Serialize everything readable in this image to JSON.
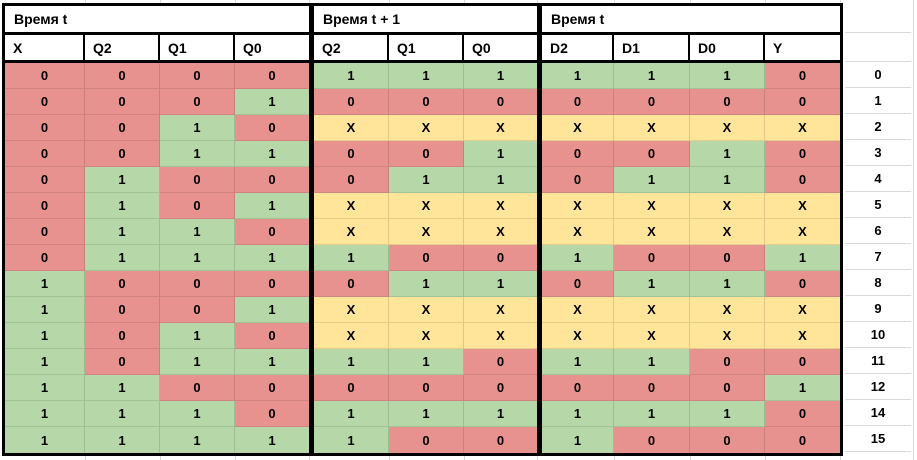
{
  "table": {
    "groups": [
      {
        "title": "Время t",
        "columns": [
          "X",
          "Q2",
          "Q1",
          "Q0"
        ]
      },
      {
        "title": "Время t + 1",
        "columns": [
          "Q2",
          "Q1",
          "Q0"
        ]
      },
      {
        "title": "Время t",
        "columns": [
          "D2",
          "D1",
          "D0",
          "Y"
        ]
      }
    ],
    "rows": [
      {
        "index": "0",
        "sections": [
          [
            "0",
            "0",
            "0",
            "0"
          ],
          [
            "1",
            "1",
            "1"
          ],
          [
            "1",
            "1",
            "1",
            "0"
          ]
        ]
      },
      {
        "index": "1",
        "sections": [
          [
            "0",
            "0",
            "0",
            "1"
          ],
          [
            "0",
            "0",
            "0"
          ],
          [
            "0",
            "0",
            "0",
            "0"
          ]
        ]
      },
      {
        "index": "2",
        "sections": [
          [
            "0",
            "0",
            "1",
            "0"
          ],
          [
            "X",
            "X",
            "X"
          ],
          [
            "X",
            "X",
            "X",
            "X"
          ]
        ]
      },
      {
        "index": "3",
        "sections": [
          [
            "0",
            "0",
            "1",
            "1"
          ],
          [
            "0",
            "0",
            "1"
          ],
          [
            "0",
            "0",
            "1",
            "0"
          ]
        ]
      },
      {
        "index": "4",
        "sections": [
          [
            "0",
            "1",
            "0",
            "0"
          ],
          [
            "0",
            "1",
            "1"
          ],
          [
            "0",
            "1",
            "1",
            "0"
          ]
        ]
      },
      {
        "index": "5",
        "sections": [
          [
            "0",
            "1",
            "0",
            "1"
          ],
          [
            "X",
            "X",
            "X"
          ],
          [
            "X",
            "X",
            "X",
            "X"
          ]
        ]
      },
      {
        "index": "6",
        "sections": [
          [
            "0",
            "1",
            "1",
            "0"
          ],
          [
            "X",
            "X",
            "X"
          ],
          [
            "X",
            "X",
            "X",
            "X"
          ]
        ]
      },
      {
        "index": "7",
        "sections": [
          [
            "0",
            "1",
            "1",
            "1"
          ],
          [
            "1",
            "0",
            "0"
          ],
          [
            "1",
            "0",
            "0",
            "1"
          ]
        ]
      },
      {
        "index": "8",
        "sections": [
          [
            "1",
            "0",
            "0",
            "0"
          ],
          [
            "0",
            "1",
            "1"
          ],
          [
            "0",
            "1",
            "1",
            "0"
          ]
        ]
      },
      {
        "index": "9",
        "sections": [
          [
            "1",
            "0",
            "0",
            "1"
          ],
          [
            "X",
            "X",
            "X"
          ],
          [
            "X",
            "X",
            "X",
            "X"
          ]
        ]
      },
      {
        "index": "10",
        "sections": [
          [
            "1",
            "0",
            "1",
            "0"
          ],
          [
            "X",
            "X",
            "X"
          ],
          [
            "X",
            "X",
            "X",
            "X"
          ]
        ]
      },
      {
        "index": "11",
        "sections": [
          [
            "1",
            "0",
            "1",
            "1"
          ],
          [
            "1",
            "1",
            "0"
          ],
          [
            "1",
            "1",
            "0",
            "0"
          ]
        ]
      },
      {
        "index": "12",
        "sections": [
          [
            "1",
            "1",
            "0",
            "0"
          ],
          [
            "0",
            "0",
            "0"
          ],
          [
            "0",
            "0",
            "0",
            "1"
          ]
        ]
      },
      {
        "index": "14",
        "sections": [
          [
            "1",
            "1",
            "1",
            "0"
          ],
          [
            "1",
            "1",
            "1"
          ],
          [
            "1",
            "1",
            "1",
            "0"
          ]
        ]
      },
      {
        "index": "15",
        "sections": [
          [
            "1",
            "1",
            "1",
            "1"
          ],
          [
            "1",
            "0",
            "0"
          ],
          [
            "1",
            "0",
            "0",
            "0"
          ]
        ]
      }
    ]
  },
  "colors": {
    "cell_zero": "#e8928f",
    "cell_one": "#b6d7a8",
    "cell_dont_care": "#ffe599",
    "header_bg": "#ffffff",
    "border_strong": "#000000",
    "grid_faint": "#d9d9d9",
    "text": "#000000"
  }
}
